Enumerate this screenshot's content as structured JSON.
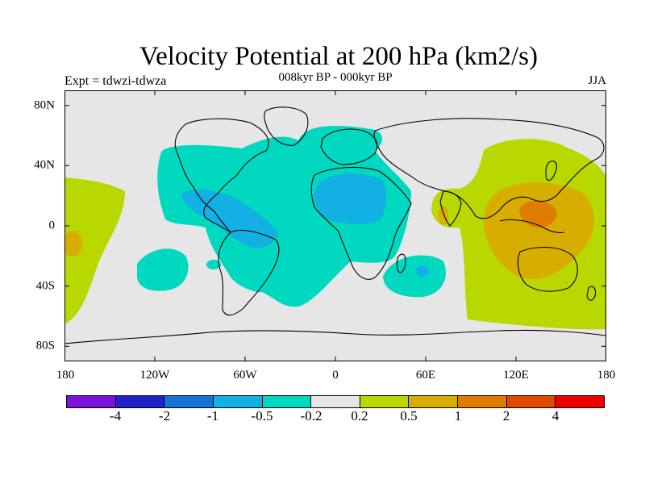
{
  "header": {
    "title": "Velocity Potential at 200 hPa (km2/s)",
    "experiment": "Expt = tdwzi-tdwza",
    "period": "008kyr BP - 000kyr BP",
    "season": "JJA"
  },
  "axes": {
    "lat_ticks": [
      "80N",
      "40N",
      "0",
      "40S",
      "80S"
    ],
    "lon_ticks": [
      "180",
      "120W",
      "60W",
      "0",
      "60E",
      "120E",
      "180"
    ]
  },
  "colorbar": {
    "colors": [
      "#7a12dc",
      "#2222cc",
      "#1473d6",
      "#13b0e4",
      "#00d8bf",
      "#e6e6e6",
      "#b9d800",
      "#d7ae00",
      "#e07d00",
      "#e04a00",
      "#ee0000"
    ],
    "labels": [
      "-4",
      "-2",
      "-1",
      "-0.5",
      "-0.2",
      "0.2",
      "0.5",
      "1",
      "2",
      "4"
    ]
  },
  "colors": {
    "background": "#e6e6e6",
    "negative_weak": "#00d8bf",
    "negative_mid": "#13b0e4",
    "positive_weak": "#b9d800",
    "positive_mid": "#d7ae00",
    "positive_strong": "#e07d00"
  }
}
